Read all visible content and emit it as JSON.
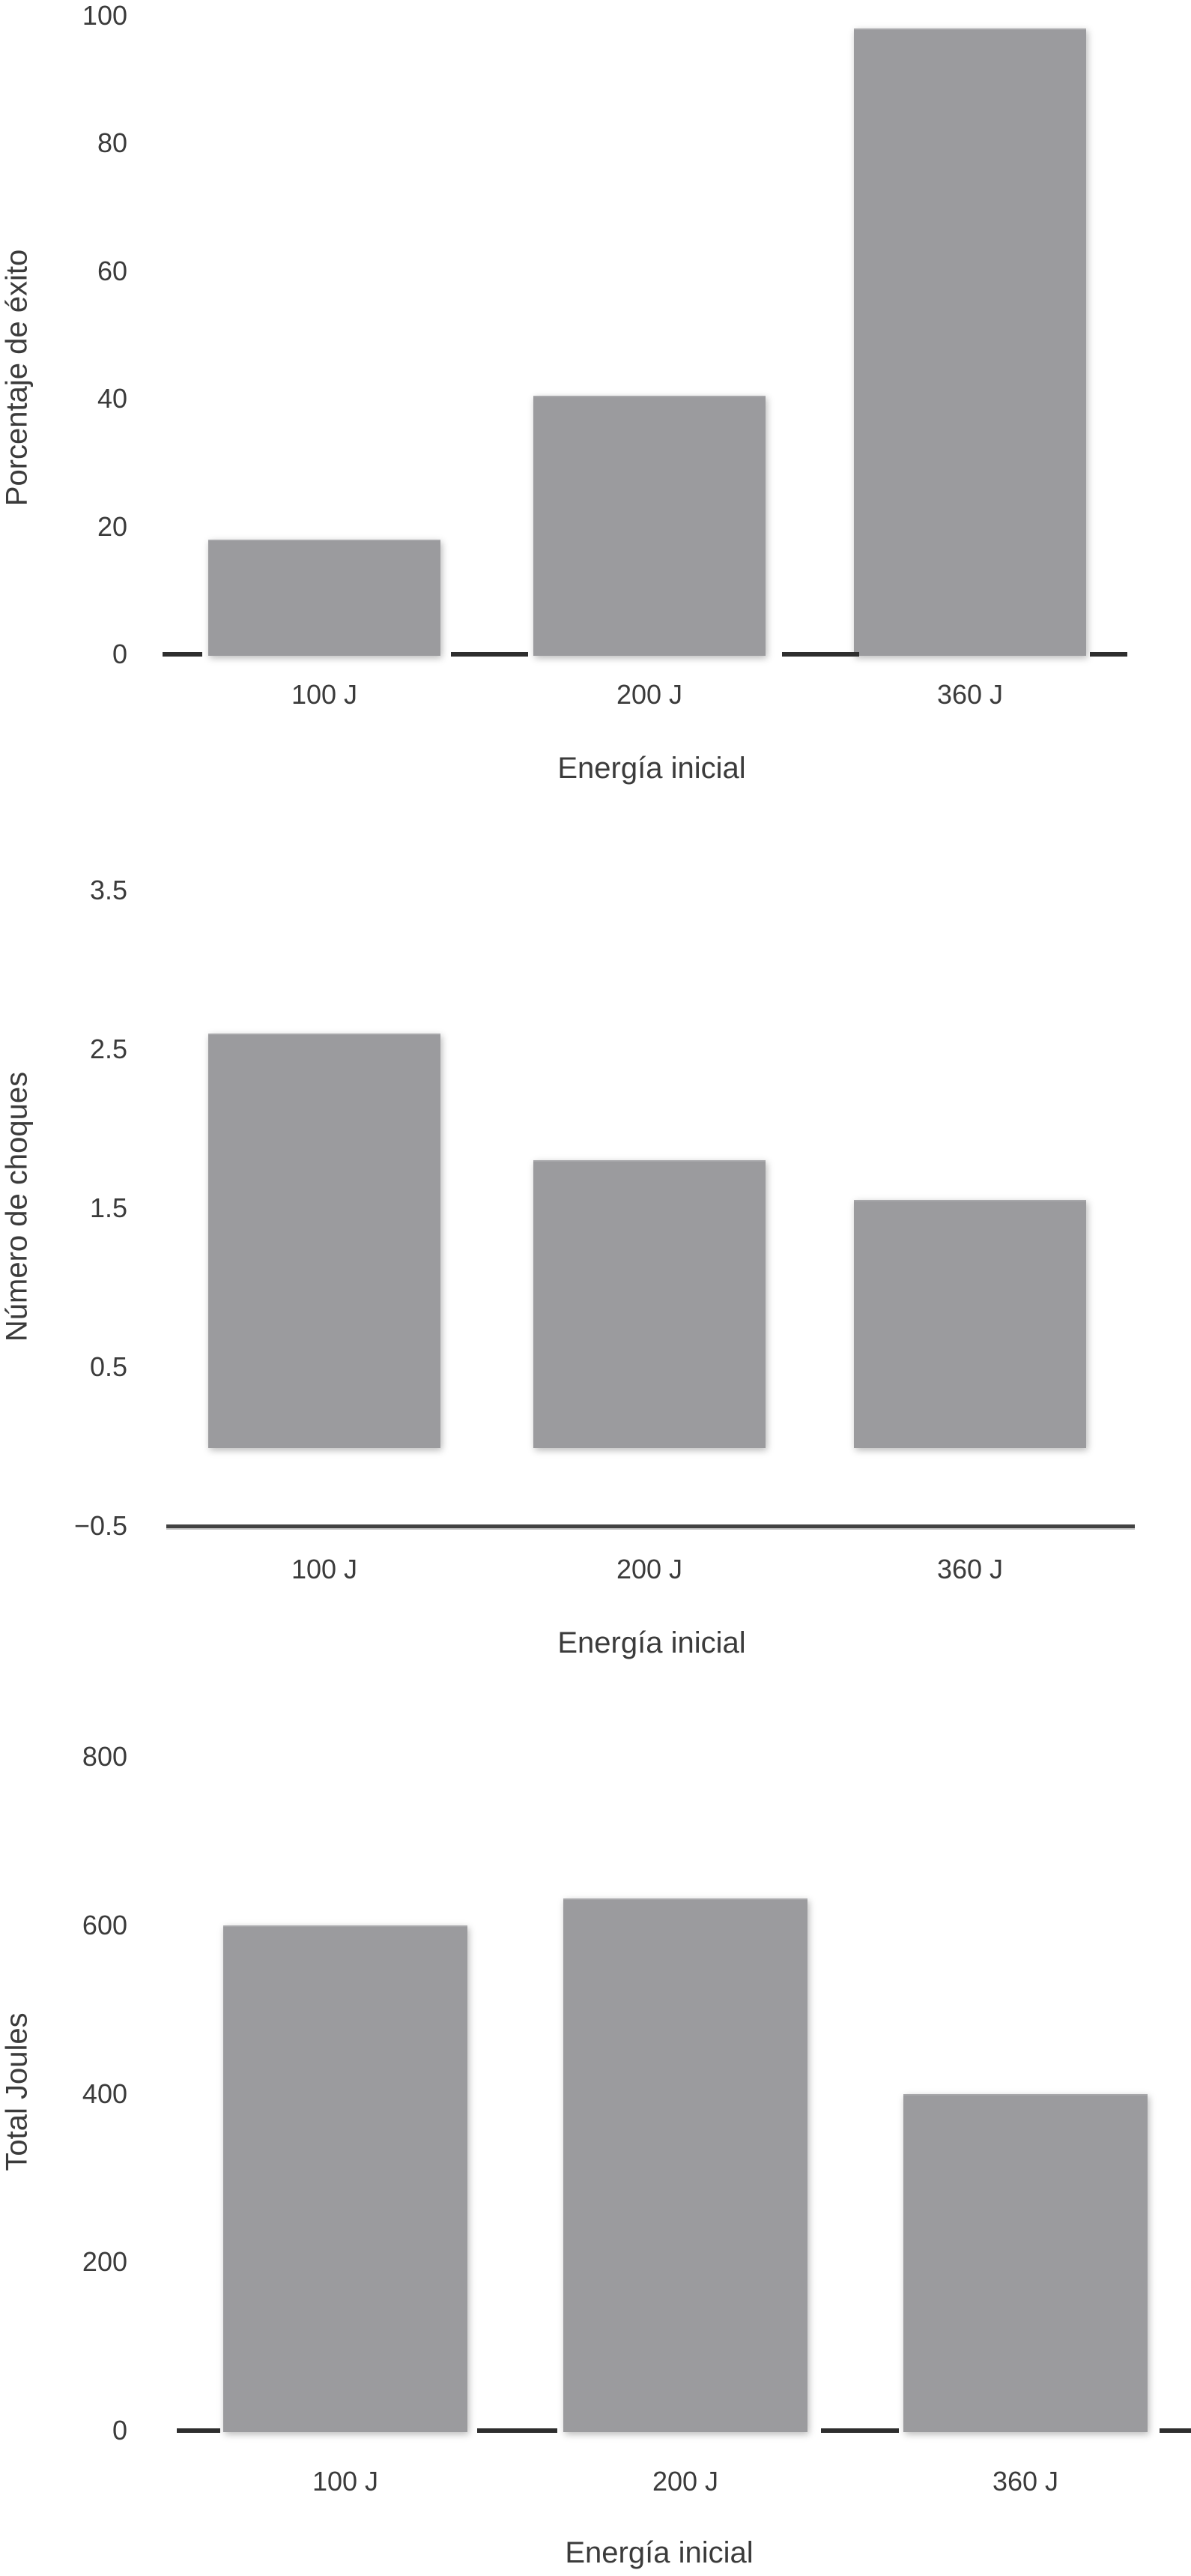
{
  "figure": {
    "description_categories": [
      "100 J",
      "200 J",
      "360 J"
    ],
    "x_axis_title": "Energía inicial"
  },
  "colors": {
    "bar": "#9b9b9e",
    "axis_dash": "#2e2e2e",
    "axis_line": "#424242",
    "text": "#3b3b3b",
    "background": "#ffffff"
  },
  "chart_data": [
    {
      "type": "bar",
      "categories": [
        "100 J",
        "200 J",
        "360 J"
      ],
      "values": [
        18,
        40.5,
        98
      ],
      "xlabel": "Energía inicial",
      "ylabel": "Porcentaje de éxito",
      "ylim": [
        0,
        100
      ],
      "yticks": [
        {
          "value": 0,
          "label": "0"
        },
        {
          "value": 20,
          "label": "20"
        },
        {
          "value": 40,
          "label": "40"
        },
        {
          "value": 60,
          "label": "60"
        },
        {
          "value": 80,
          "label": "80"
        },
        {
          "value": 100,
          "label": "100"
        }
      ],
      "bar_base": 0,
      "baseline": {
        "value": 0,
        "style": "dashes"
      },
      "grid": false,
      "legend": null
    },
    {
      "type": "bar",
      "categories": [
        "100 J",
        "200 J",
        "360 J"
      ],
      "values": [
        2.6,
        1.8,
        1.55
      ],
      "xlabel": "Energía inicial",
      "ylabel": "Número de choques",
      "ylim": [
        -0.5,
        3.5
      ],
      "yticks": [
        {
          "value": -0.5,
          "label": "−0.5"
        },
        {
          "value": 0.5,
          "label": "0.5"
        },
        {
          "value": 1.5,
          "label": "1.5"
        },
        {
          "value": 2.5,
          "label": "2.5"
        },
        {
          "value": 3.5,
          "label": "3.5"
        }
      ],
      "bar_base": 0,
      "baseline": {
        "value": -0.5,
        "style": "line"
      },
      "grid": false,
      "legend": null
    },
    {
      "type": "bar",
      "categories": [
        "100 J",
        "200 J",
        "360 J"
      ],
      "values": [
        600,
        632,
        400
      ],
      "xlabel": "Energía inicial",
      "ylabel": "Total Joules",
      "ylim": [
        0,
        800
      ],
      "yticks": [
        {
          "value": 0,
          "label": "0"
        },
        {
          "value": 200,
          "label": "200"
        },
        {
          "value": 400,
          "label": "400"
        },
        {
          "value": 600,
          "label": "600"
        },
        {
          "value": 800,
          "label": "800"
        }
      ],
      "bar_base": 0,
      "baseline": {
        "value": 0,
        "style": "dashes"
      },
      "grid": false,
      "legend": null
    }
  ]
}
